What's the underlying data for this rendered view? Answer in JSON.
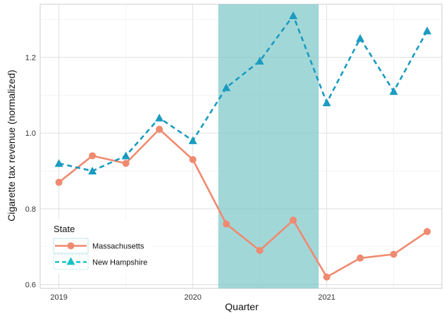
{
  "chart_data": {
    "type": "line",
    "xlabel": "Quarter",
    "ylabel": "Cigarette tax revenue (normalized)",
    "x_tick_labels": [
      "2019",
      "2020",
      "2021"
    ],
    "y_tick_labels": [
      "0.6",
      "0.8",
      "1.0",
      "1.2"
    ],
    "ylim": [
      0.59,
      1.34
    ],
    "x": [
      2019.0,
      2019.25,
      2019.5,
      2019.75,
      2020.0,
      2020.25,
      2020.5,
      2020.75,
      2021.0,
      2021.25,
      2021.5,
      2021.75
    ],
    "xlim": [
      2018.86,
      2021.86
    ],
    "highlight_band": [
      2020.19,
      2020.94
    ],
    "highlight_color": "#7ec8c9",
    "grid": true,
    "legend": {
      "title": "State",
      "position": "bottom-left"
    },
    "series": [
      {
        "name": "Massachusetts",
        "color": "#ef8a70",
        "line_style": "solid",
        "marker": "circle",
        "values": [
          0.87,
          0.94,
          0.92,
          1.01,
          0.93,
          0.76,
          0.69,
          0.77,
          0.62,
          0.67,
          0.68,
          0.74
        ]
      },
      {
        "name": "New Hampshire",
        "color": "#1a9bc0",
        "line_style": "dashed",
        "marker": "triangle",
        "values": [
          0.92,
          0.9,
          0.94,
          1.04,
          0.98,
          1.12,
          1.19,
          1.31,
          1.08,
          1.25,
          1.11,
          1.27
        ]
      }
    ]
  }
}
